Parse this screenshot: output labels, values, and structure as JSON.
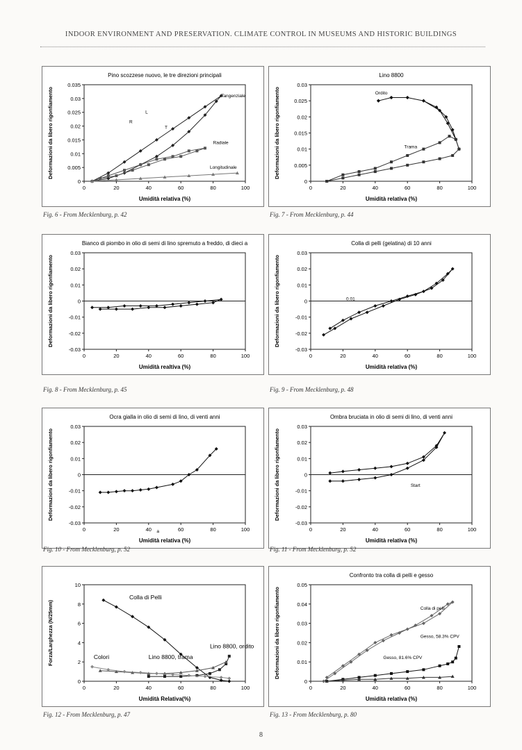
{
  "header": "INDOOR ENVIRONMENT AND PRESERVATION. CLIMATE CONTROL IN MUSEUMS AND HISTORIC BUILDINGS",
  "page_number": "8",
  "captions": [
    "Fig. 6 - From Mecklenburg, p. 42",
    "Fig. 7 - From Mecklenburg, p. 44",
    "Fig. 8 - From Mecklenburg, p. 45",
    "Fig. 9 - From Mecklenburg, p. 48",
    "Fig. 10 - From Mecklenburg, p. 52",
    "Fig. 11 - From Mecklenburg, p. 52",
    "Fig. 12 - From Mecklenburg, p. 47",
    "Fig. 13 - From Mecklenburg, p. 80"
  ],
  "chart_data": [
    {
      "type": "line",
      "title": "Pino scozzese nuovo, le tre direzioni principali",
      "xlabel": "Umidità relativa (%)",
      "ylabel": "Deformazioni da libero rigonfiamento",
      "xlim": [
        0,
        100
      ],
      "ylim": [
        0,
        0.035
      ],
      "xticks": [
        0,
        20,
        40,
        60,
        80,
        100
      ],
      "yticks": [
        0,
        0.005,
        0.01,
        0.015,
        0.02,
        0.025,
        0.03,
        0.035
      ],
      "ytick_labels": [
        "0",
        "0.005",
        "0.01",
        "0.015",
        "0.02",
        "0.025",
        "0.03",
        "0.035"
      ],
      "annotations": [
        "Tangenziale",
        "Radiale",
        "Longitudinale",
        "L",
        "R",
        "T"
      ],
      "series": [
        {
          "name": "Tangenziale",
          "color": "#222",
          "x": [
            5,
            15,
            25,
            35,
            45,
            55,
            65,
            75,
            85,
            82,
            75,
            65,
            55,
            45,
            35,
            25,
            15,
            5
          ],
          "y": [
            0,
            0.003,
            0.007,
            0.011,
            0.015,
            0.019,
            0.023,
            0.027,
            0.031,
            0.029,
            0.024,
            0.018,
            0.013,
            0.009,
            0.006,
            0.003,
            0.001,
            0
          ]
        },
        {
          "name": "Radiale",
          "color": "#555",
          "x": [
            5,
            15,
            25,
            35,
            45,
            55,
            65,
            75,
            70,
            60,
            50,
            40,
            30,
            20,
            10
          ],
          "y": [
            0,
            0.002,
            0.004,
            0.006,
            0.008,
            0.009,
            0.011,
            0.012,
            0.011,
            0.009,
            0.008,
            0.006,
            0.004,
            0.002,
            0.001
          ]
        },
        {
          "name": "Longitudinale",
          "color": "#777",
          "x": [
            5,
            20,
            35,
            50,
            65,
            80,
            95
          ],
          "y": [
            0,
            0.0005,
            0.001,
            0.0015,
            0.002,
            0.0025,
            0.003
          ]
        }
      ]
    },
    {
      "type": "line",
      "title": "Lino 8800",
      "xlabel": "Umidità relativa (%)",
      "ylabel": "Deformazioni da libero rigonfiamento",
      "xlim": [
        0,
        100
      ],
      "ylim": [
        0,
        0.03
      ],
      "xticks": [
        0,
        20,
        40,
        60,
        80,
        100
      ],
      "yticks": [
        0,
        0.005,
        0.01,
        0.015,
        0.02,
        0.025,
        0.03
      ],
      "ytick_labels": [
        "0",
        "0.005",
        "0.01",
        "0.015",
        "0.02",
        "0.025",
        "0.03"
      ],
      "annotations": [
        "Ordito",
        "Trama"
      ],
      "series": [
        {
          "name": "Ordito",
          "color": "#111",
          "x": [
            42,
            50,
            60,
            70,
            78,
            84,
            88,
            92,
            90,
            85,
            80,
            70,
            60,
            50,
            42
          ],
          "y": [
            0.025,
            0.026,
            0.026,
            0.025,
            0.023,
            0.02,
            0.016,
            0.01,
            0.013,
            0.018,
            0.022,
            0.025,
            0.026,
            0.026,
            0.025
          ]
        },
        {
          "name": "Trama",
          "color": "#333",
          "x": [
            10,
            20,
            30,
            40,
            50,
            60,
            70,
            80,
            86,
            90,
            92,
            88,
            80,
            70,
            60,
            50,
            40,
            30,
            20,
            10
          ],
          "y": [
            0,
            0.002,
            0.003,
            0.004,
            0.006,
            0.008,
            0.01,
            0.012,
            0.014,
            0.013,
            0.01,
            0.008,
            0.007,
            0.006,
            0.005,
            0.004,
            0.003,
            0.002,
            0.001,
            0
          ]
        }
      ]
    },
    {
      "type": "line",
      "title": "Bianco di piombo in olio di semi di lino spremuto a freddo, di dieci anni",
      "xlabel": "Umidità realtiva (%)",
      "ylabel": "Deformazioni da libero rigonfiamento",
      "xlim": [
        0,
        100
      ],
      "ylim": [
        -0.03,
        0.03
      ],
      "xticks": [
        0,
        20,
        40,
        60,
        80,
        100
      ],
      "yticks": [
        -0.03,
        -0.02,
        -0.01,
        0,
        0.01,
        0.02,
        0.03
      ],
      "ytick_labels": [
        "-0.03",
        "-0.02",
        "-0.01",
        "0",
        "0.01",
        "0.02",
        "0.03"
      ],
      "series": [
        {
          "name": "",
          "color": "#111",
          "x": [
            5,
            15,
            25,
            35,
            45,
            55,
            65,
            75,
            85,
            80,
            70,
            60,
            50,
            40,
            30,
            20,
            10
          ],
          "y": [
            -0.004,
            -0.004,
            -0.003,
            -0.003,
            -0.003,
            -0.002,
            -0.001,
            0,
            0.001,
            -0.001,
            -0.002,
            -0.003,
            -0.004,
            -0.004,
            -0.005,
            -0.005,
            -0.005
          ]
        }
      ]
    },
    {
      "type": "line",
      "title": "Colla di pelli (gelatina) di 10 anni",
      "xlabel": "Umidità relativa (%)",
      "ylabel": "Deformazioni da libero rigonfiamento",
      "xlim": [
        0,
        100
      ],
      "ylim": [
        -0.03,
        0.03
      ],
      "xticks": [
        0,
        20,
        40,
        60,
        80,
        100
      ],
      "yticks": [
        -0.03,
        -0.02,
        -0.01,
        0,
        0.01,
        0.02,
        0.03
      ],
      "ytick_labels": [
        "-0.03",
        "-0.02",
        "-0.01",
        "0",
        "0.01",
        "0.02",
        "0.03"
      ],
      "annotations": [
        "0.01"
      ],
      "series": [
        {
          "name": "",
          "color": "#111",
          "x": [
            8,
            15,
            25,
            35,
            45,
            55,
            65,
            75,
            82,
            88,
            85,
            78,
            70,
            60,
            50,
            40,
            30,
            20,
            12
          ],
          "y": [
            -0.021,
            -0.017,
            -0.011,
            -0.007,
            -0.003,
            0.001,
            0.004,
            0.008,
            0.013,
            0.02,
            0.017,
            0.011,
            0.006,
            0.003,
            0,
            -0.003,
            -0.007,
            -0.012,
            -0.017
          ]
        }
      ]
    },
    {
      "type": "line",
      "title": "Ocra gialla in olio di semi di lino, di venti anni",
      "xlabel": "Umidità relativa (%)",
      "ylabel": "Deformazioni da libero rigonfiamento",
      "xlim": [
        0,
        100
      ],
      "ylim": [
        -0.03,
        0.03
      ],
      "xticks": [
        0,
        20,
        40,
        60,
        80,
        100
      ],
      "yticks": [
        -0.03,
        -0.02,
        -0.01,
        0,
        0.01,
        0.02,
        0.03
      ],
      "ytick_labels": [
        "-0.03",
        "-0.02",
        "-0.01",
        "0",
        "0.01",
        "0.02",
        "0.03"
      ],
      "annotations": [
        "a"
      ],
      "series": [
        {
          "name": "",
          "color": "#111",
          "x": [
            10,
            15,
            20,
            25,
            30,
            35,
            40,
            45,
            55,
            60,
            65,
            70,
            78,
            82
          ],
          "y": [
            -0.011,
            -0.011,
            -0.0105,
            -0.01,
            -0.01,
            -0.0095,
            -0.009,
            -0.008,
            -0.006,
            -0.004,
            0,
            0.003,
            0.012,
            0.016
          ]
        }
      ]
    },
    {
      "type": "line",
      "title": "Ombra bruciata in olio di semi di lino, di venti anni",
      "xlabel": "Umidità relativa (%)",
      "ylabel": "Deformazioni da libero rigonfiamento",
      "xlim": [
        0,
        100
      ],
      "ylim": [
        -0.03,
        0.03
      ],
      "xticks": [
        0,
        20,
        40,
        60,
        80,
        100
      ],
      "yticks": [
        -0.03,
        -0.02,
        -0.01,
        0,
        0.01,
        0.02,
        0.03
      ],
      "ytick_labels": [
        "-0.03",
        "-0.02",
        "-0.01",
        "0",
        "0.01",
        "0.02",
        "0.03"
      ],
      "annotations": [
        "Start"
      ],
      "series": [
        {
          "name": "",
          "color": "#111",
          "x": [
            12,
            20,
            30,
            40,
            50,
            60,
            70,
            78,
            83,
            78,
            70,
            60,
            50,
            40,
            30,
            20,
            12
          ],
          "y": [
            -0.004,
            -0.004,
            -0.003,
            -0.002,
            0,
            0.004,
            0.009,
            0.017,
            0.026,
            0.018,
            0.011,
            0.007,
            0.005,
            0.004,
            0.003,
            0.002,
            0.001
          ]
        }
      ]
    },
    {
      "type": "line",
      "xlabel": "Umidità Relativa(%)",
      "ylabel": "Forza/Larghezza (N/25mm)",
      "xlim": [
        0,
        100
      ],
      "ylim": [
        0,
        10
      ],
      "xticks": [
        0,
        20,
        40,
        60,
        80,
        100
      ],
      "yticks": [
        0,
        2,
        4,
        6,
        8,
        10
      ],
      "ytick_labels": [
        "0",
        "2",
        "4",
        "6",
        "8",
        "10"
      ],
      "annotations": [
        "Colla di Pelli",
        "Lino 8800, ordito",
        "Lino 8800, trama",
        "Colori"
      ],
      "series": [
        {
          "name": "Colla di Pelli",
          "color": "#111",
          "x": [
            12,
            20,
            30,
            40,
            50,
            60,
            70,
            78,
            85,
            90
          ],
          "y": [
            8.4,
            7.7,
            6.7,
            5.6,
            4.3,
            2.8,
            1.4,
            0.4,
            0.1,
            0
          ]
        },
        {
          "name": "Lino 8800, ordito",
          "color": "#222",
          "x": [
            40,
            50,
            60,
            70,
            78,
            84,
            88,
            90
          ],
          "y": [
            0.5,
            0.5,
            0.5,
            0.6,
            0.8,
            1.2,
            1.8,
            2.6
          ]
        },
        {
          "name": "Lino 8800, trama",
          "color": "#555",
          "x": [
            10,
            20,
            30,
            40,
            50,
            60,
            70,
            80,
            88
          ],
          "y": [
            1.1,
            1.0,
            0.9,
            0.8,
            0.8,
            0.9,
            1.1,
            1.4,
            2.0
          ]
        },
        {
          "name": "Colori",
          "color": "#888",
          "x": [
            5,
            15,
            25,
            35,
            45,
            55,
            65,
            75,
            85,
            90
          ],
          "y": [
            1.5,
            1.2,
            1.0,
            0.9,
            0.8,
            0.7,
            0.6,
            0.5,
            0.4,
            0.3
          ]
        }
      ]
    },
    {
      "type": "line",
      "title": "Confronto tra colla di pelli e gesso",
      "xlabel": "Umidità relativa (%)",
      "ylabel": "Deformazioni da libero rigonfiamento",
      "xlim": [
        0,
        100
      ],
      "ylim": [
        0,
        0.05
      ],
      "xticks": [
        0,
        20,
        40,
        60,
        80,
        100
      ],
      "yticks": [
        0,
        0.01,
        0.02,
        0.03,
        0.04,
        0.05
      ],
      "ytick_labels": [
        "0",
        "0.01",
        "0.02",
        "0.03",
        "0.04",
        "0.05"
      ],
      "annotations": [
        "Colla di pelli",
        "Gesso, 58.3% CPV",
        "Gesso, 81.6% CPV"
      ],
      "series": [
        {
          "name": "Colla di pelli",
          "color": "#666",
          "x": [
            8,
            15,
            25,
            35,
            45,
            55,
            65,
            75,
            85,
            88,
            80,
            70,
            60,
            50,
            40,
            30,
            20,
            10
          ],
          "y": [
            0,
            0.004,
            0.01,
            0.016,
            0.021,
            0.025,
            0.029,
            0.034,
            0.04,
            0.041,
            0.035,
            0.03,
            0.027,
            0.024,
            0.02,
            0.014,
            0.008,
            0.002
          ]
        },
        {
          "name": "Gesso, 58.3% CPV",
          "color": "#111",
          "x": [
            10,
            20,
            30,
            40,
            50,
            60,
            70,
            80,
            85,
            88,
            90,
            92
          ],
          "y": [
            0,
            0.001,
            0.002,
            0.003,
            0.004,
            0.005,
            0.006,
            0.008,
            0.009,
            0.01,
            0.012,
            0.018
          ]
        },
        {
          "name": "Gesso, 81.6% CPV",
          "color": "#333",
          "x": [
            10,
            20,
            30,
            40,
            50,
            60,
            70,
            80,
            88
          ],
          "y": [
            0,
            0.0005,
            0.001,
            0.001,
            0.0015,
            0.0015,
            0.002,
            0.002,
            0.0025
          ]
        }
      ]
    }
  ]
}
